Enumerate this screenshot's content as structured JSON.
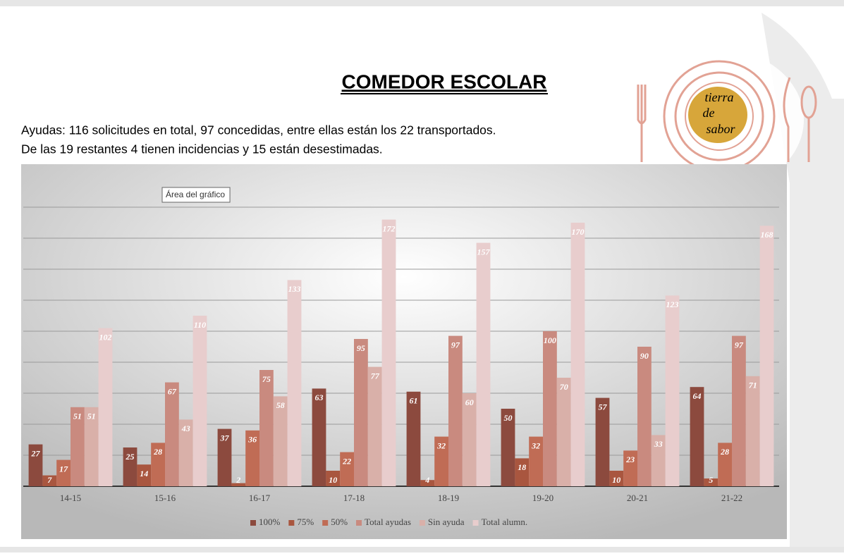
{
  "header": {
    "title": "COMEDOR ESCOLAR",
    "lines": [
      "Ayudas: 116 solicitudes en total, 97 concedidas, entre ellas están los 22 transportados.",
      "De las 19 restantes 4 tienen incidencias y  15 están desestimadas."
    ]
  },
  "tooltip": "Área del gráfico",
  "logo": [
    "tierra",
    "de",
    "sabor"
  ],
  "chart_data": {
    "type": "bar",
    "categories": [
      "14-15",
      "15-16",
      "16-17",
      "17-18",
      "18-19",
      "19-20",
      "20-21",
      "21-22"
    ],
    "series": [
      {
        "name": "100%",
        "color": "#8c4a3e",
        "values": [
          27,
          25,
          37,
          63,
          61,
          50,
          57,
          64
        ]
      },
      {
        "name": "75%",
        "color": "#a9563f",
        "values": [
          7,
          14,
          2,
          10,
          4,
          18,
          10,
          5
        ]
      },
      {
        "name": "50%",
        "color": "#c06c55",
        "values": [
          17,
          28,
          36,
          22,
          32,
          32,
          23,
          28
        ]
      },
      {
        "name": "Total ayudas",
        "color": "#c98a7f",
        "values": [
          51,
          67,
          75,
          95,
          97,
          100,
          90,
          97
        ]
      },
      {
        "name": "Sin ayuda",
        "color": "#d9b0a9",
        "values": [
          51,
          43,
          58,
          77,
          60,
          70,
          33,
          71
        ]
      },
      {
        "name": "Total alumn.",
        "color": "#e8cdcd",
        "values": [
          102,
          110,
          133,
          172,
          157,
          170,
          123,
          168
        ]
      }
    ],
    "ylim": [
      0,
      200
    ],
    "yticks": [
      0,
      20,
      40,
      60,
      80,
      100,
      120,
      140,
      160,
      180
    ],
    "grid": true,
    "legend": "bottom"
  }
}
